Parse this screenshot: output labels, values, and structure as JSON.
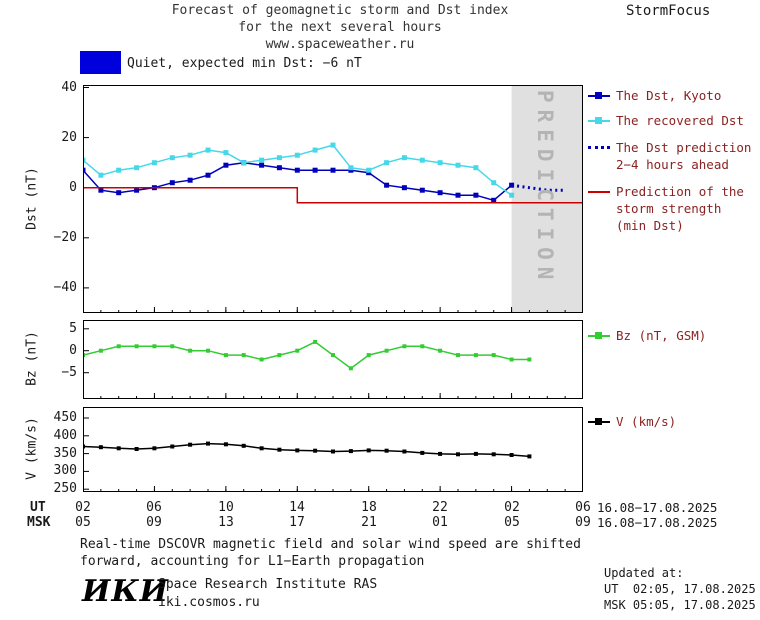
{
  "header": {
    "title_line1": "Forecast of geomagnetic storm and Dst index",
    "title_line2": "for the next several hours",
    "title_line3": "www.spaceweather.ru",
    "brand": "StormFocus"
  },
  "status": {
    "swatch_color": "#0000dd",
    "text": "Quiet, expected min Dst: −6 nT"
  },
  "colors": {
    "legend_text": "#8b2222",
    "frame": "#000000",
    "prediction_zone": "#e0e0e0",
    "prediction_zone_text": "#b4b4b4"
  },
  "legend": {
    "dst_kyoto": "The Dst, Kyoto",
    "recovered": "The recovered Dst",
    "prediction_line1": "The Dst prediction",
    "prediction_line2": "2−4 hours ahead",
    "storm_line1": "Prediction of the",
    "storm_line2": "storm strength",
    "storm_line3": "(min Dst)",
    "bz": "Bz (nT, GSM)",
    "v": "V (km/s)"
  },
  "xaxis": {
    "ut_label": "UT",
    "msk_label": "MSK",
    "ut_ticks": [
      "02",
      "06",
      "10",
      "14",
      "18",
      "22",
      "02",
      "06"
    ],
    "msk_ticks": [
      "05",
      "09",
      "13",
      "17",
      "21",
      "01",
      "05",
      "09"
    ],
    "ut_date_range": "16.08−17.08.2025",
    "msk_date_range": "16.08−17.08.2025"
  },
  "footer": {
    "note_line1": "Real-time DSCOVR magnetic field and solar wind speed are shifted",
    "note_line2": "forward, accounting for L1−Earth propagation",
    "logo": "ИКИ",
    "institute": "Space Research Institute RAS",
    "site": "iki.cosmos.ru",
    "updated_label": "Updated at:",
    "updated_ut": "UT  02:05, 17.08.2025",
    "updated_msk": "MSK 05:05, 17.08.2025"
  },
  "chart_data": [
    {
      "key": "dst",
      "type": "line",
      "ylabel": "Dst (nT)",
      "x_description": "hours since 02:00 UT 16.08.2025, ticks every 4 h to 06:00 UT 17.08.2025",
      "xlim": [
        0,
        28
      ],
      "ylim": [
        -50,
        41
      ],
      "xticks": [
        0,
        4,
        8,
        12,
        16,
        20,
        24,
        28
      ],
      "yticks": [
        40,
        20,
        0,
        -20,
        -40
      ],
      "ytick_labels": [
        "40",
        "20",
        "0",
        "−20",
        "−40"
      ],
      "prediction_zone": [
        24,
        28
      ],
      "zone_color": "#e0e0e0",
      "prediction_zone_label": "PREDICTION",
      "series": [
        {
          "key": "dst_kyoto",
          "name": "The Dst, Kyoto",
          "color": "#0000bb",
          "marker": true,
          "marker_size": 5,
          "x": [
            0,
            1,
            2,
            3,
            4,
            5,
            6,
            7,
            8,
            9,
            10,
            11,
            12,
            13,
            14,
            15,
            16,
            17,
            18,
            19,
            20,
            21,
            22,
            23,
            24
          ],
          "values": [
            7,
            -1,
            -2,
            -1,
            0,
            2,
            3,
            5,
            9,
            10,
            9,
            8,
            7,
            7,
            7,
            7,
            6,
            1,
            0,
            -1,
            -2,
            -3,
            -3,
            -5,
            1
          ]
        },
        {
          "key": "dst_recovered",
          "name": "The recovered Dst",
          "color": "#45d8ea",
          "marker": true,
          "marker_size": 5,
          "x": [
            0,
            1,
            2,
            3,
            4,
            5,
            6,
            7,
            8,
            9,
            10,
            11,
            12,
            13,
            14,
            15,
            16,
            17,
            18,
            19,
            20,
            21,
            22,
            23,
            24
          ],
          "values": [
            11,
            5,
            7,
            8,
            10,
            12,
            13,
            15,
            14,
            10,
            11,
            12,
            13,
            15,
            17,
            8,
            7,
            10,
            12,
            11,
            10,
            9,
            8,
            2,
            -3
          ]
        },
        {
          "key": "dst_prediction",
          "name": "The Dst prediction 2−4 hours ahead",
          "color": "#0000bb",
          "dotted": true,
          "width": 3,
          "x": [
            24,
            25,
            26,
            27
          ],
          "values": [
            1,
            0,
            -1,
            -1
          ]
        },
        {
          "key": "storm_strength",
          "name": "Prediction of the storm strength (min Dst)",
          "color": "#cc0000",
          "x": [
            0,
            12,
            12,
            28
          ],
          "values": [
            0,
            0,
            -6,
            -6
          ]
        }
      ]
    },
    {
      "key": "bz",
      "type": "line",
      "ylabel": "Bz (nT)",
      "xlim": [
        0,
        28
      ],
      "ylim": [
        -11,
        7
      ],
      "xticks": [
        0,
        4,
        8,
        12,
        16,
        20,
        24,
        28
      ],
      "yticks": [
        5,
        0,
        -5
      ],
      "ytick_labels": [
        "5",
        "0",
        "−5"
      ],
      "series": [
        {
          "key": "bz_gsm",
          "name": "Bz (nT, GSM)",
          "color": "#33cc33",
          "marker": true,
          "marker_size": 4,
          "x": [
            0,
            1,
            2,
            3,
            4,
            5,
            6,
            7,
            8,
            9,
            10,
            11,
            12,
            13,
            14,
            15,
            16,
            17,
            18,
            19,
            20,
            21,
            22,
            23,
            24,
            25
          ],
          "values": [
            -1,
            0,
            1,
            1,
            1,
            1,
            0,
            0,
            -1,
            -1,
            -2,
            -1,
            0,
            2,
            -1,
            -4,
            -1,
            0,
            1,
            1,
            0,
            -1,
            -1,
            -1,
            -2,
            -2
          ]
        }
      ]
    },
    {
      "key": "v",
      "type": "line",
      "ylabel": "V (km/s)",
      "xlim": [
        0,
        28
      ],
      "ylim": [
        242,
        481
      ],
      "xticks": [
        0,
        4,
        8,
        12,
        16,
        20,
        24,
        28
      ],
      "yticks": [
        450,
        400,
        350,
        300,
        250
      ],
      "ytick_labels": [
        "450",
        "400",
        "350",
        "300",
        "250"
      ],
      "series": [
        {
          "key": "v_speed",
          "name": "V (km/s)",
          "color": "#000000",
          "marker": true,
          "marker_size": 4,
          "x": [
            0,
            1,
            2,
            3,
            4,
            5,
            6,
            7,
            8,
            9,
            10,
            11,
            12,
            13,
            14,
            15,
            16,
            17,
            18,
            19,
            20,
            21,
            22,
            23,
            24,
            25
          ],
          "values": [
            370,
            368,
            365,
            363,
            365,
            370,
            375,
            378,
            376,
            372,
            365,
            361,
            359,
            358,
            356,
            357,
            359,
            358,
            356,
            352,
            349,
            348,
            349,
            348,
            346,
            342
          ]
        }
      ]
    }
  ]
}
